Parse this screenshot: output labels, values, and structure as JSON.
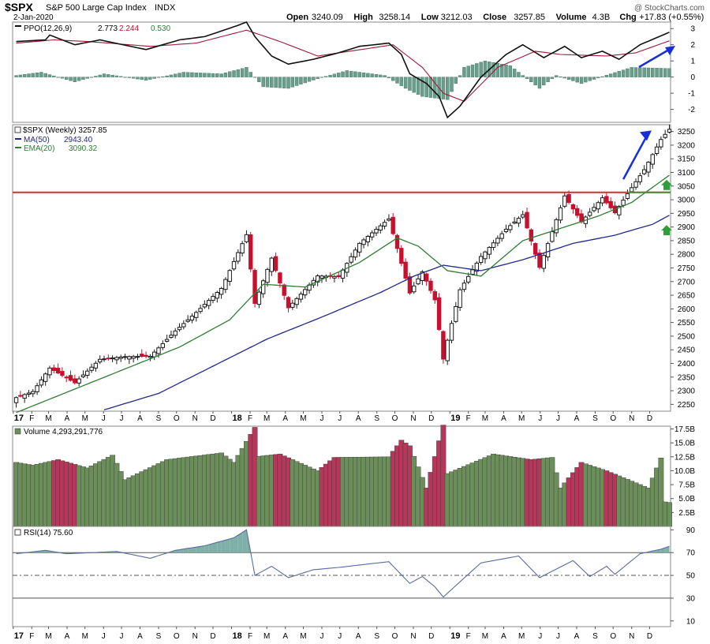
{
  "header": {
    "symbol": "$SPX",
    "name": "S&P 500 Large Cap Index",
    "exchange": "INDX",
    "date": "2-Jan-2020",
    "watermark": "@ StockCharts.com",
    "quote": [
      {
        "label": "Open",
        "value": "3240.09"
      },
      {
        "label": "High",
        "value": "3258.14"
      },
      {
        "label": "Low",
        "value": "3212.03"
      },
      {
        "label": "Close",
        "value": "3257.85"
      },
      {
        "label": "Volume",
        "value": "4.3B"
      },
      {
        "label": "Chg",
        "value": "+17.83 (+0.55%)"
      }
    ]
  },
  "colors": {
    "up": "#1a1a1a",
    "down": "#c8102e",
    "vol_up": "#6b8e5a",
    "vol_down": "#b5385a",
    "ma50": "#1f2a8a",
    "ema20": "#2e7d32",
    "resistance": "#d32f2f",
    "support": "#2e9d3a",
    "arrow": "#1530d8",
    "ppo_hist": "#6a9e8c",
    "rsi": "#5a6aa0",
    "rsi_fill": "#7fb0a8"
  },
  "chart_data": [
    {
      "type": "line",
      "panel": "PPO",
      "title": "PPO(12,26,9)",
      "legend_values": [
        "2.773",
        "2.244",
        "0.530"
      ],
      "ylim": [
        -2.8,
        3.4
      ],
      "yticks": [
        -2,
        -1,
        0,
        1,
        2,
        3
      ],
      "series": [
        {
          "role": "ppo",
          "x": [
            "2017-01-06",
            "2017-02-24",
            "2017-03-03",
            "2017-04-14",
            "2017-05-26",
            "2017-08-11",
            "2017-10-06",
            "2017-11-17",
            "2018-01-12",
            "2018-01-26",
            "2018-02-09",
            "2018-03-09",
            "2018-04-06",
            "2018-05-18",
            "2018-06-29",
            "2018-08-03",
            "2018-09-21",
            "2018-10-12",
            "2018-10-26",
            "2018-11-23",
            "2018-12-14",
            "2018-12-28",
            "2019-01-18",
            "2019-02-22",
            "2019-04-05",
            "2019-05-03",
            "2019-06-07",
            "2019-07-12",
            "2019-08-09",
            "2019-09-13",
            "2019-10-11",
            "2019-11-15",
            "2020-01-03"
          ],
          "y": [
            2.2,
            2.3,
            2.6,
            2.0,
            2.3,
            1.7,
            2.3,
            2.5,
            3.2,
            3.4,
            2.5,
            1.3,
            0.8,
            1.1,
            1.5,
            1.9,
            2.1,
            1.4,
            0.2,
            -0.4,
            -1.2,
            -2.5,
            -1.8,
            0.0,
            1.4,
            2.0,
            1.2,
            1.9,
            1.2,
            1.6,
            1.1,
            2.0,
            2.773
          ]
        },
        {
          "role": "signal",
          "x": [
            "2017-01-06",
            "2017-03-10",
            "2017-05-05",
            "2017-08-18",
            "2017-11-03",
            "2018-01-26",
            "2018-03-23",
            "2018-05-25",
            "2018-09-28",
            "2018-11-16",
            "2018-12-21",
            "2019-01-25",
            "2019-03-22",
            "2019-05-24",
            "2019-07-05",
            "2019-09-20",
            "2019-11-08",
            "2020-01-03"
          ],
          "y": [
            2.1,
            2.3,
            2.2,
            1.9,
            2.1,
            2.9,
            2.2,
            1.3,
            2.0,
            0.6,
            -1.0,
            -1.5,
            0.6,
            1.6,
            1.4,
            1.3,
            1.5,
            2.244
          ]
        }
      ],
      "histogram": {
        "x": [
          "2017-01-06",
          "2017-02-17",
          "2017-04-14",
          "2017-06-02",
          "2017-08-11",
          "2017-10-13",
          "2017-12-15",
          "2018-01-26",
          "2018-02-23",
          "2018-04-06",
          "2018-05-25",
          "2018-07-13",
          "2018-09-14",
          "2018-10-19",
          "2018-11-16",
          "2018-12-28",
          "2019-01-25",
          "2019-03-01",
          "2019-04-12",
          "2019-05-31",
          "2019-06-28",
          "2019-08-09",
          "2019-09-27",
          "2019-11-01",
          "2020-01-03"
        ],
        "y": [
          0.1,
          0.3,
          -0.3,
          0.2,
          -0.2,
          0.3,
          0.2,
          0.6,
          -0.6,
          -0.7,
          -0.1,
          0.4,
          0.1,
          -0.7,
          -1.2,
          -1.4,
          0.6,
          1.0,
          0.7,
          -0.7,
          0.1,
          -0.4,
          0.2,
          0.6,
          0.53
        ]
      }
    },
    {
      "type": "candlestick",
      "panel": "price",
      "title": "$SPX (Weekly) 3257.85",
      "ylim": [
        2225,
        3275
      ],
      "yticks": [
        2250,
        2300,
        2350,
        2400,
        2450,
        2500,
        2550,
        2600,
        2650,
        2700,
        2750,
        2800,
        2850,
        2900,
        2950,
        3000,
        3050,
        3100,
        3150,
        3200,
        3250
      ],
      "xlabels": [
        "17",
        "F",
        "M",
        "A",
        "M",
        "J",
        "J",
        "A",
        "S",
        "O",
        "N",
        "D",
        "18",
        "F",
        "M",
        "A",
        "M",
        "J",
        "J",
        "A",
        "S",
        "O",
        "N",
        "D",
        "19",
        "F",
        "M",
        "A",
        "M",
        "J",
        "J",
        "A",
        "S",
        "O",
        "N",
        "D"
      ],
      "series": [
        {
          "role": "close",
          "x": [
            "2017-01-06",
            "2017-02-03",
            "2017-03-03",
            "2017-04-14",
            "2017-05-26",
            "2017-07-07",
            "2017-08-18",
            "2017-09-29",
            "2017-11-03",
            "2017-12-15",
            "2018-01-26",
            "2018-02-09",
            "2018-03-09",
            "2018-04-06",
            "2018-05-25",
            "2018-06-29",
            "2018-08-03",
            "2018-09-21",
            "2018-10-12",
            "2018-10-26",
            "2018-11-16",
            "2018-12-07",
            "2018-12-21",
            "2018-12-28",
            "2019-01-18",
            "2019-02-22",
            "2019-04-05",
            "2019-05-03",
            "2019-05-31",
            "2019-07-12",
            "2019-08-09",
            "2019-09-13",
            "2019-10-04",
            "2019-10-25",
            "2019-11-22",
            "2019-12-20",
            "2020-01-03"
          ],
          "y": [
            2275,
            2297,
            2383,
            2329,
            2415,
            2425,
            2426,
            2519,
            2587,
            2675,
            2872,
            2620,
            2786,
            2604,
            2721,
            2718,
            2840,
            2930,
            2767,
            2658,
            2736,
            2633,
            2416,
            2485,
            2670,
            2792,
            2892,
            2945,
            2752,
            3014,
            2919,
            3007,
            2952,
            3022,
            3110,
            3221,
            3258
          ]
        },
        {
          "role": "ma50",
          "name": "MA(50)",
          "legend_value": "2943.40",
          "x": [
            "2017-06-02",
            "2017-09-01",
            "2017-12-01",
            "2018-03-02",
            "2018-06-01",
            "2018-09-07",
            "2018-11-02",
            "2018-12-21",
            "2019-02-22",
            "2019-05-03",
            "2019-07-26",
            "2019-10-04",
            "2019-12-06",
            "2020-01-03"
          ],
          "y": [
            2230,
            2290,
            2390,
            2490,
            2570,
            2660,
            2720,
            2760,
            2740,
            2780,
            2840,
            2870,
            2910,
            2943
          ]
        },
        {
          "role": "ema20",
          "name": "EMA(20)",
          "legend_value": "3090.32",
          "x": [
            "2017-01-06",
            "2017-04-07",
            "2017-07-07",
            "2017-10-06",
            "2017-12-29",
            "2018-02-23",
            "2018-05-04",
            "2018-08-03",
            "2018-10-05",
            "2018-11-09",
            "2018-12-28",
            "2019-02-22",
            "2019-05-03",
            "2019-07-12",
            "2019-09-06",
            "2019-11-01",
            "2020-01-03"
          ],
          "y": [
            2220,
            2300,
            2380,
            2460,
            2560,
            2690,
            2680,
            2770,
            2860,
            2830,
            2740,
            2720,
            2850,
            2900,
            2940,
            2990,
            3090
          ]
        }
      ],
      "annotations": [
        {
          "type": "horizontal-line",
          "y": 3027,
          "color": "#d32f2f"
        },
        {
          "type": "horizontal-line",
          "y": 3027,
          "color": "#2e9d3a",
          "x_start": "2019-10-25"
        },
        {
          "type": "arrow",
          "from": [
            "2019-10-18",
            3075
          ],
          "to": [
            "2019-11-29",
            3245
          ]
        },
        {
          "type": "up-arrow",
          "at": 3056
        },
        {
          "type": "up-arrow",
          "at": 2890
        }
      ]
    },
    {
      "type": "bar",
      "panel": "volume",
      "title": "Volume 4,293,291,776",
      "ylim": [
        0,
        18
      ],
      "yticks": [
        "2.5B",
        "5.0B",
        "7.5B",
        "10.0B",
        "12.5B",
        "15.0B",
        "17.5B"
      ],
      "x": [
        "2017-01-06",
        "2017-02-03",
        "2017-03-17",
        "2017-05-05",
        "2017-06-16",
        "2017-07-07",
        "2017-09-15",
        "2017-12-15",
        "2018-01-05",
        "2018-02-09",
        "2018-02-16",
        "2018-03-23",
        "2018-05-25",
        "2018-06-22",
        "2018-09-21",
        "2018-10-12",
        "2018-10-26",
        "2018-11-23",
        "2018-12-21",
        "2018-12-28",
        "2019-03-15",
        "2019-05-17",
        "2019-06-21",
        "2019-07-05",
        "2019-08-09",
        "2019-09-20",
        "2019-11-29",
        "2019-12-20",
        "2019-12-27",
        "2020-01-03"
      ],
      "values": [
        11.5,
        11.0,
        12.0,
        10.5,
        12.8,
        8.4,
        12.0,
        13.2,
        11.5,
        17.8,
        12.6,
        13.0,
        10.0,
        12.4,
        12.5,
        15.5,
        14.5,
        6.9,
        18.2,
        9.5,
        13.0,
        12.0,
        12.4,
        6.9,
        11.5,
        10.0,
        6.9,
        12.3,
        4.4,
        4.3
      ]
    },
    {
      "type": "line",
      "panel": "RSI",
      "title": "RSI(14) 75.60",
      "ylim": [
        5,
        93
      ],
      "yticks": [
        10,
        30,
        50,
        70,
        90
      ],
      "guides": [
        30,
        50,
        70
      ],
      "x": [
        "2017-01-06",
        "2017-02-24",
        "2017-03-31",
        "2017-05-12",
        "2017-06-23",
        "2017-08-18",
        "2017-09-29",
        "2017-11-17",
        "2018-01-05",
        "2018-01-26",
        "2018-02-09",
        "2018-03-09",
        "2018-04-06",
        "2018-05-18",
        "2018-06-29",
        "2018-09-21",
        "2018-10-26",
        "2018-11-16",
        "2018-12-07",
        "2018-12-21",
        "2019-01-11",
        "2019-02-22",
        "2019-04-26",
        "2019-05-31",
        "2019-07-26",
        "2019-08-23",
        "2019-09-20",
        "2019-10-04",
        "2019-11-15",
        "2019-12-20",
        "2020-01-03"
      ],
      "y": [
        69,
        72,
        69,
        70,
        71,
        65,
        72,
        76,
        83,
        90,
        50,
        58,
        48,
        55,
        57,
        62,
        43,
        49,
        40,
        31,
        41,
        61,
        67,
        48,
        63,
        49,
        58,
        51,
        69,
        73,
        75.6
      ]
    }
  ]
}
